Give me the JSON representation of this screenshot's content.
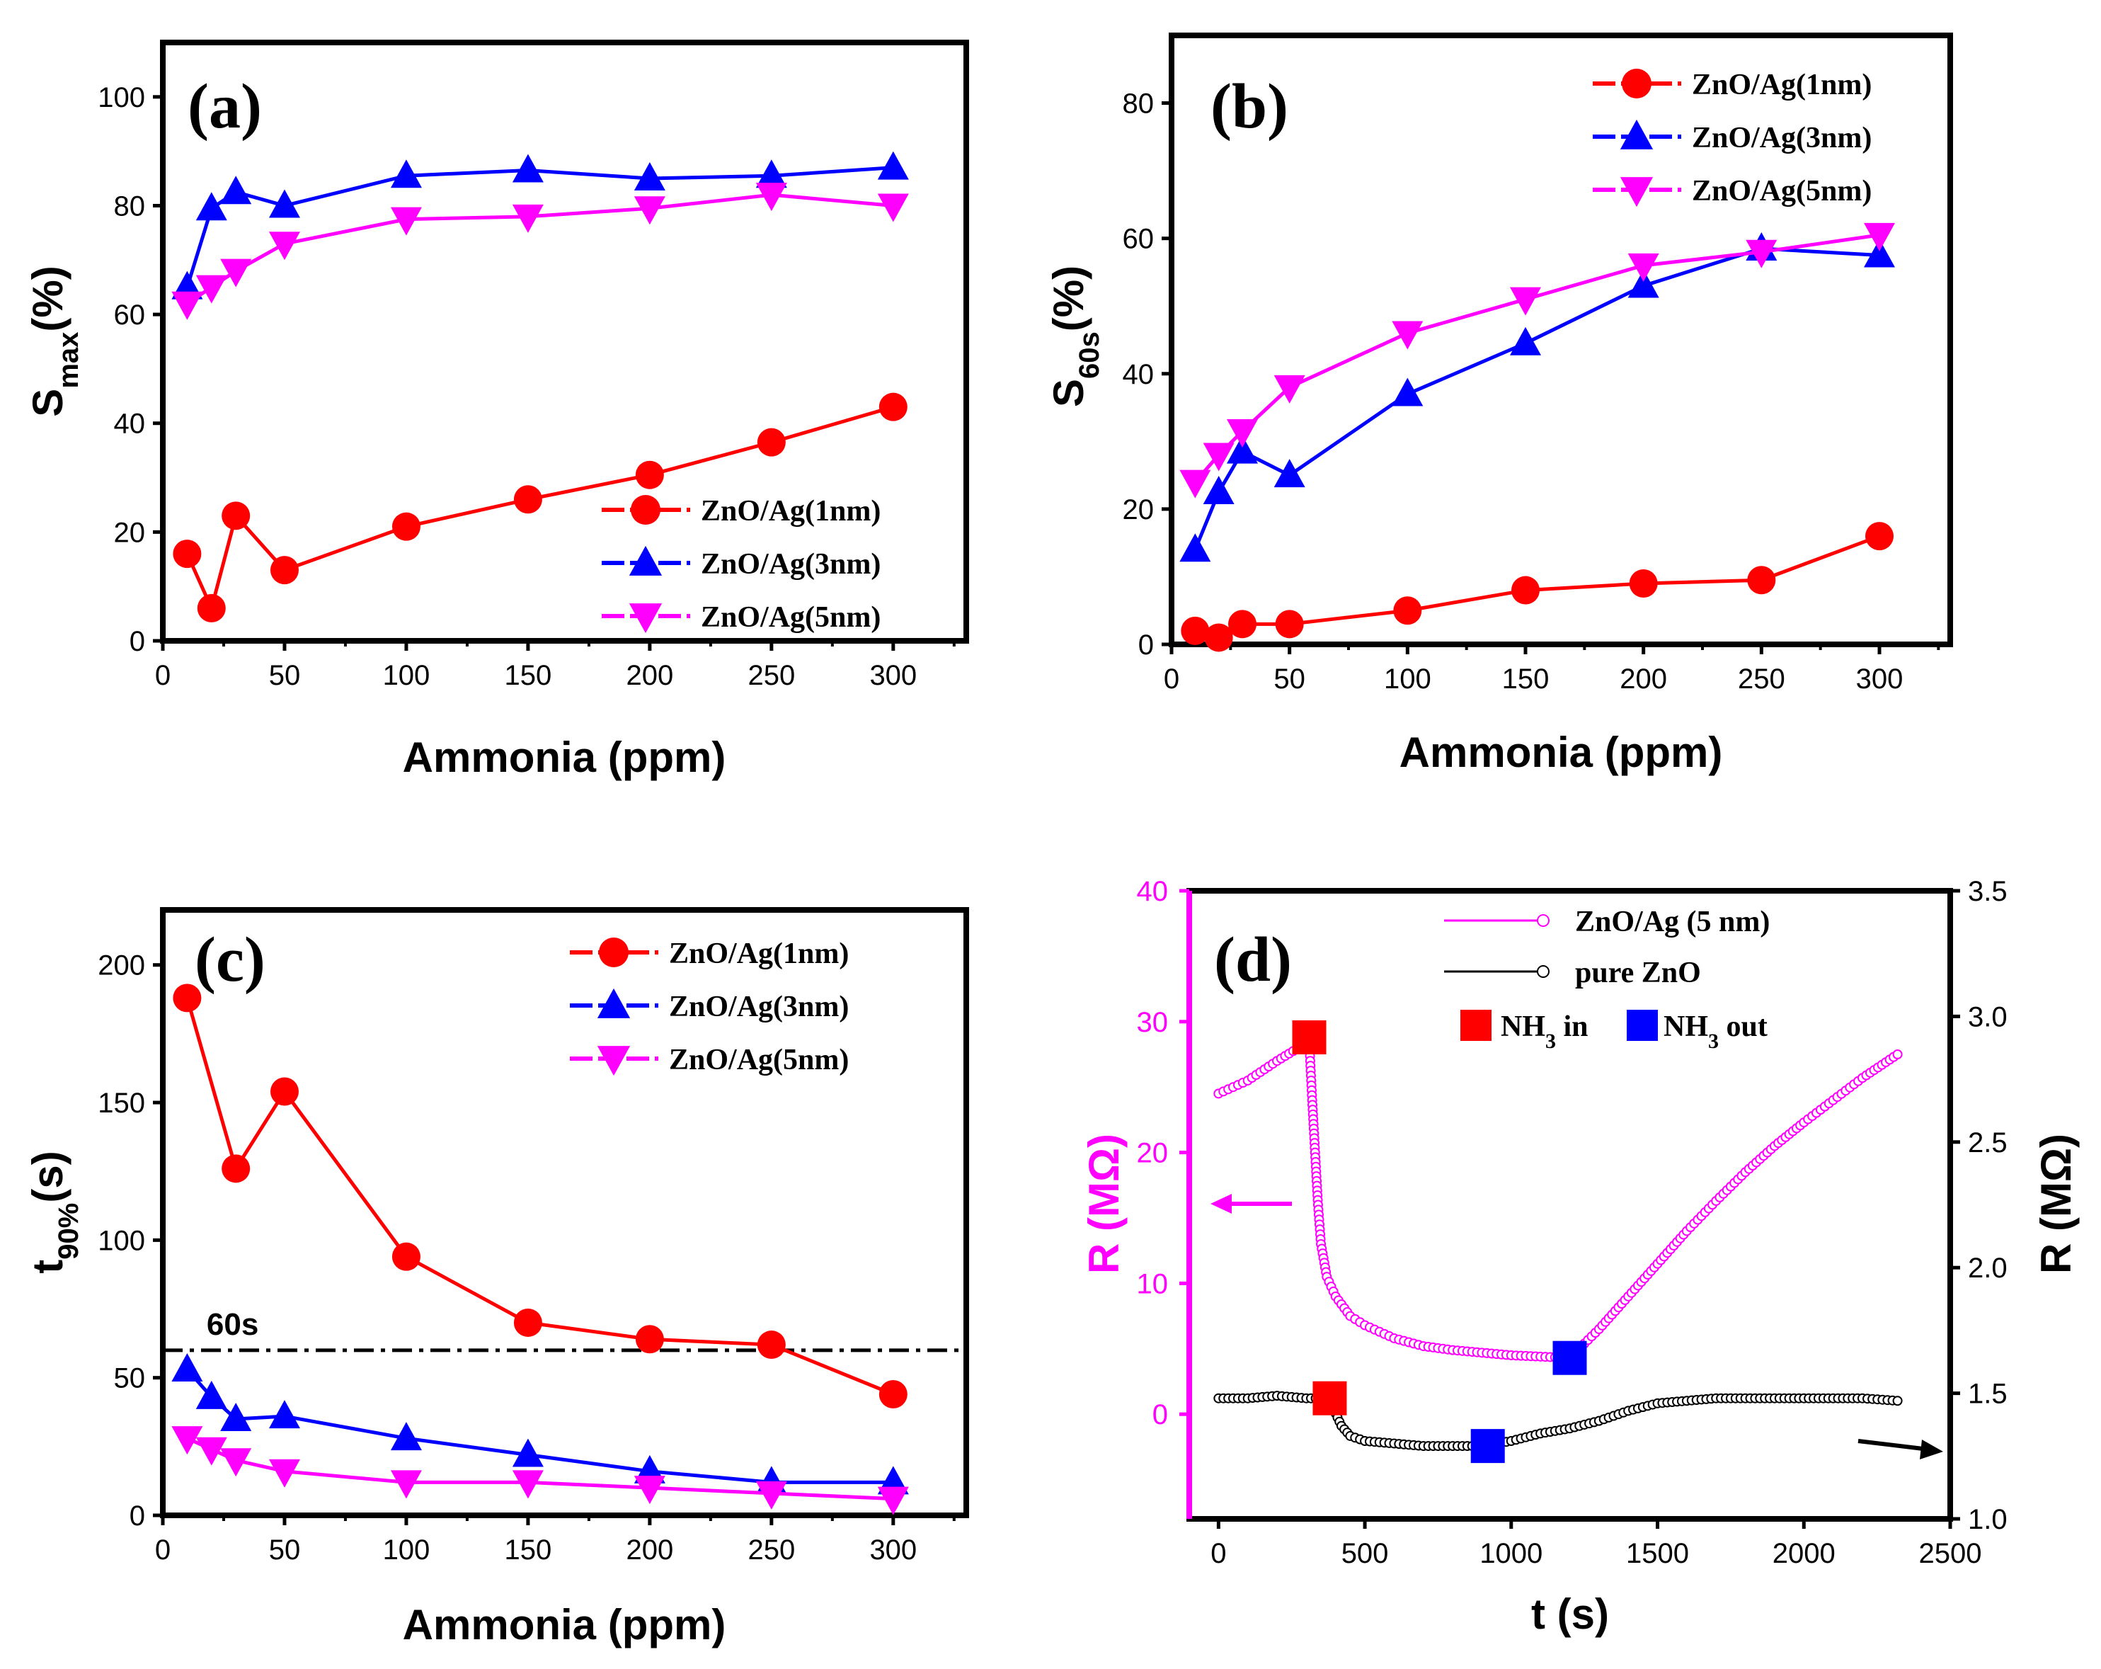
{
  "colors": {
    "red": "#ff0000",
    "blue": "#0000ff",
    "magenta": "#ff00ff",
    "black": "#000000"
  },
  "chart_data": [
    {
      "id": "a",
      "type": "line",
      "panel_label": "(a)",
      "xlabel": "Ammonia (ppm)",
      "ylabel_main": "S",
      "ylabel_sub": "max",
      "ylabel_suffix": "(%)",
      "xlim": [
        0,
        330
      ],
      "ylim": [
        0,
        110
      ],
      "xticks": [
        0,
        50,
        100,
        150,
        200,
        250,
        300
      ],
      "yticks": [
        0,
        20,
        40,
        60,
        80,
        100
      ],
      "legend_position": "bottom-right",
      "x": [
        10,
        20,
        30,
        50,
        100,
        150,
        200,
        250,
        300
      ],
      "series": [
        {
          "name": "ZnO/Ag(1nm)",
          "marker": "circle",
          "color": "#ff0000",
          "values": [
            16,
            6,
            23,
            13,
            21,
            26,
            30.5,
            36.5,
            43
          ]
        },
        {
          "name": "ZnO/Ag(3nm)",
          "marker": "triangle-up",
          "color": "#0000ff",
          "values": [
            65,
            79.5,
            82.5,
            80,
            85.5,
            86.5,
            85,
            85.5,
            87
          ]
        },
        {
          "name": "ZnO/Ag(5nm)",
          "marker": "triangle-down",
          "color": "#ff00ff",
          "values": [
            62,
            65,
            68,
            73,
            77.5,
            78,
            79.5,
            82,
            80
          ]
        }
      ]
    },
    {
      "id": "b",
      "type": "line",
      "panel_label": "(b)",
      "xlabel": "Ammonia (ppm)",
      "ylabel_main": "S",
      "ylabel_sub": "60s",
      "ylabel_suffix": "(%)",
      "xlim": [
        0,
        330
      ],
      "ylim": [
        0,
        90
      ],
      "xticks": [
        0,
        50,
        100,
        150,
        200,
        250,
        300
      ],
      "yticks": [
        0,
        20,
        40,
        60,
        80
      ],
      "legend_position": "top-right",
      "x": [
        10,
        20,
        30,
        50,
        100,
        150,
        200,
        250,
        300
      ],
      "series": [
        {
          "name": "ZnO/Ag(1nm)",
          "marker": "circle",
          "color": "#ff0000",
          "values": [
            2,
            1,
            3,
            3,
            5,
            8,
            9,
            9.5,
            16
          ]
        },
        {
          "name": "ZnO/Ag(3nm)",
          "marker": "triangle-up",
          "color": "#0000ff",
          "values": [
            14,
            22.5,
            28.5,
            25,
            37,
            44.5,
            53,
            58.5,
            57.5
          ]
        },
        {
          "name": "ZnO/Ag(5nm)",
          "marker": "triangle-down",
          "color": "#ff00ff",
          "values": [
            24,
            28,
            31.5,
            38,
            46,
            51,
            56,
            58,
            60.5
          ]
        }
      ]
    },
    {
      "id": "c",
      "type": "line",
      "panel_label": "(c)",
      "xlabel": "Ammonia (ppm)",
      "ylabel_main": "t",
      "ylabel_sub": "90%",
      "ylabel_suffix": "(s)",
      "xlim": [
        0,
        330
      ],
      "ylim": [
        0,
        220
      ],
      "xticks": [
        0,
        50,
        100,
        150,
        200,
        250,
        300
      ],
      "yticks": [
        0,
        50,
        100,
        150,
        200
      ],
      "legend_position": "top-right",
      "reference_line": {
        "y": 60,
        "label": "60s"
      },
      "x": [
        10,
        30,
        50,
        100,
        150,
        200,
        250,
        300
      ],
      "series": [
        {
          "name": "ZnO/Ag(1nm)",
          "marker": "circle",
          "color": "#ff0000",
          "x": [
            10,
            30,
            50,
            100,
            150,
            200,
            250,
            300
          ],
          "values": [
            188,
            126,
            154,
            94,
            70,
            64,
            62,
            44
          ]
        },
        {
          "name": "ZnO/Ag(3nm)",
          "marker": "triangle-up",
          "color": "#0000ff",
          "x": [
            10,
            20,
            30,
            50,
            100,
            150,
            200,
            250,
            300
          ],
          "values": [
            53,
            43,
            35,
            36,
            28,
            22,
            16,
            12,
            12
          ]
        },
        {
          "name": "ZnO/Ag(5nm)",
          "marker": "triangle-down",
          "color": "#ff00ff",
          "x": [
            10,
            20,
            30,
            50,
            100,
            150,
            200,
            250,
            300
          ],
          "values": [
            28,
            24,
            20,
            16,
            12,
            12,
            10,
            8,
            6
          ]
        }
      ]
    },
    {
      "id": "d",
      "type": "line",
      "panel_label": "(d)",
      "xlabel": "t (s)",
      "ylabel_left": "R (MΩ)",
      "ylabel_right": "R (MΩ)",
      "xlim": [
        -100,
        2500
      ],
      "ylim_left": [
        -8,
        40
      ],
      "ylim_right": [
        1.0,
        3.5
      ],
      "xticks": [
        0,
        500,
        1000,
        1500,
        2000,
        2500
      ],
      "yticks_left": [
        0,
        10,
        20,
        30,
        40
      ],
      "yticks_right": [
        1.0,
        1.5,
        2.0,
        2.5,
        3.0,
        3.5
      ],
      "legend_position": "top-right",
      "legend": {
        "series1": "ZnO/Ag (5 nm)",
        "series2": "pure ZnO",
        "nh3_in": "NH",
        "nh3_in_sub": "3",
        "nh3_in_suffix": " in",
        "nh3_out": "NH",
        "nh3_out_sub": "3",
        "nh3_out_suffix": " out"
      },
      "series": [
        {
          "name": "ZnO/Ag (5 nm)",
          "axis": "left",
          "color": "#ff00ff",
          "marker": "open-circle",
          "points": [
            [
              0,
              24.5
            ],
            [
              100,
              25.5
            ],
            [
              200,
              27
            ],
            [
              310,
              28.5
            ],
            [
              320,
              24
            ],
            [
              330,
              20
            ],
            [
              340,
              16
            ],
            [
              350,
              13
            ],
            [
              370,
              10.5
            ],
            [
              400,
              9
            ],
            [
              450,
              7.5
            ],
            [
              500,
              6.8
            ],
            [
              600,
              5.8
            ],
            [
              700,
              5.2
            ],
            [
              800,
              4.9
            ],
            [
              900,
              4.7
            ],
            [
              1000,
              4.5
            ],
            [
              1100,
              4.4
            ],
            [
              1200,
              4.3
            ],
            [
              1300,
              6.5
            ],
            [
              1400,
              9
            ],
            [
              1500,
              11.5
            ],
            [
              1600,
              14
            ],
            [
              1700,
              16.3
            ],
            [
              1800,
              18.5
            ],
            [
              1900,
              20.5
            ],
            [
              2000,
              22.3
            ],
            [
              2100,
              24
            ],
            [
              2200,
              25.7
            ],
            [
              2320,
              27.5
            ]
          ]
        },
        {
          "name": "pure ZnO",
          "axis": "right",
          "color": "#000000",
          "marker": "open-circle",
          "points": [
            [
              0,
              1.48
            ],
            [
              100,
              1.48
            ],
            [
              200,
              1.49
            ],
            [
              300,
              1.48
            ],
            [
              380,
              1.48
            ],
            [
              390,
              1.46
            ],
            [
              400,
              1.42
            ],
            [
              420,
              1.37
            ],
            [
              450,
              1.33
            ],
            [
              500,
              1.31
            ],
            [
              600,
              1.3
            ],
            [
              700,
              1.29
            ],
            [
              800,
              1.29
            ],
            [
              900,
              1.29
            ],
            [
              950,
              1.3
            ],
            [
              1000,
              1.31
            ],
            [
              1100,
              1.34
            ],
            [
              1200,
              1.36
            ],
            [
              1300,
              1.39
            ],
            [
              1400,
              1.43
            ],
            [
              1500,
              1.46
            ],
            [
              1600,
              1.47
            ],
            [
              1700,
              1.48
            ],
            [
              1800,
              1.48
            ],
            [
              1900,
              1.48
            ],
            [
              2000,
              1.48
            ],
            [
              2100,
              1.48
            ],
            [
              2200,
              1.48
            ],
            [
              2320,
              1.47
            ]
          ]
        }
      ],
      "markers": {
        "nh3_in": [
          {
            "x": 310,
            "y": 28.8,
            "axis": "left"
          },
          {
            "x": 380,
            "y": 1.48,
            "axis": "right"
          }
        ],
        "nh3_out": [
          {
            "x": 1200,
            "y": 4.3,
            "axis": "left"
          },
          {
            "x": 920,
            "y": 1.29,
            "axis": "right"
          }
        ]
      }
    }
  ]
}
